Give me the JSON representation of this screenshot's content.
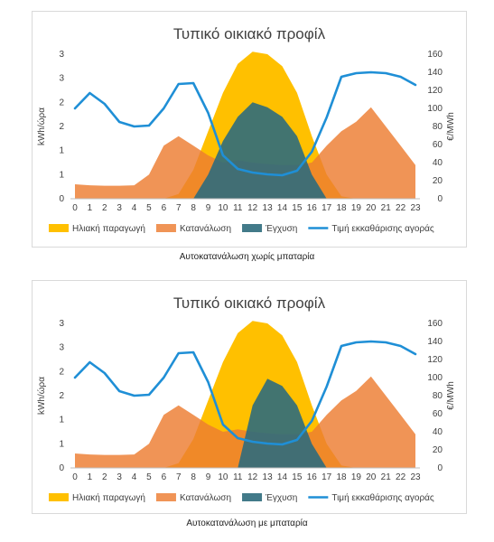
{
  "captions": [
    "Αυτοκατανάλωση χωρίς μπαταρία",
    "Αυτοκατανάλωση με μπαταρία"
  ],
  "colors": {
    "solar": "#ffc000",
    "consumption": "#ed7d31",
    "injection": "#2e6b7c",
    "price": "#1f8fd6"
  },
  "chart_data": [
    {
      "type": "area",
      "title": "Τυπικό οικιακό προφίλ",
      "ylabel": "kWh/ώρα",
      "y2label": "€/MWh",
      "x": [
        0,
        1,
        2,
        3,
        4,
        5,
        6,
        7,
        8,
        9,
        10,
        11,
        12,
        13,
        14,
        15,
        16,
        17,
        18,
        19,
        20,
        21,
        22,
        23
      ],
      "y_ticks": [
        "0",
        "1",
        "1",
        "2",
        "2",
        "3",
        "3"
      ],
      "y2_ticks": [
        "0",
        "20",
        "40",
        "60",
        "80",
        "100",
        "120",
        "140",
        "160"
      ],
      "ylim": [
        0,
        3
      ],
      "y2lim": [
        0,
        160
      ],
      "legend": "bottom",
      "series": [
        {
          "name": "Ηλιακή παραγωγή",
          "axis": "left",
          "kind": "area",
          "values": [
            0,
            0,
            0,
            0,
            0,
            0,
            0,
            0.1,
            0.6,
            1.4,
            2.2,
            2.8,
            3.05,
            3.0,
            2.75,
            2.2,
            1.3,
            0.5,
            0.05,
            0,
            0,
            0,
            0,
            0
          ]
        },
        {
          "name": "Κατανάλωση",
          "axis": "left",
          "kind": "area",
          "values": [
            0.3,
            0.28,
            0.27,
            0.27,
            0.28,
            0.5,
            1.1,
            1.3,
            1.1,
            0.9,
            0.75,
            0.8,
            0.75,
            0.72,
            0.7,
            0.7,
            0.75,
            1.1,
            1.4,
            1.6,
            1.9,
            1.5,
            1.1,
            0.7
          ]
        },
        {
          "name": "Έγχυση",
          "axis": "left",
          "kind": "area",
          "values": [
            0,
            0,
            0,
            0,
            0,
            0,
            0,
            0,
            0,
            0.5,
            1.2,
            1.7,
            2.0,
            1.9,
            1.7,
            1.3,
            0.5,
            0,
            0,
            0,
            0,
            0,
            0,
            0
          ]
        },
        {
          "name": "Τιμή εκκαθάρισης αγοράς",
          "axis": "right",
          "kind": "line",
          "values": [
            100,
            117,
            105,
            85,
            80,
            81,
            100,
            127,
            128,
            95,
            48,
            33,
            29,
            27,
            26,
            31,
            52,
            90,
            135,
            139,
            140,
            139,
            135,
            126
          ]
        }
      ]
    },
    {
      "type": "area",
      "title": "Τυπικό οικιακό προφίλ",
      "ylabel": "kWh/ώρα",
      "y2label": "€/MWh",
      "x": [
        0,
        1,
        2,
        3,
        4,
        5,
        6,
        7,
        8,
        9,
        10,
        11,
        12,
        13,
        14,
        15,
        16,
        17,
        18,
        19,
        20,
        21,
        22,
        23
      ],
      "y_ticks": [
        "0",
        "1",
        "1",
        "2",
        "2",
        "3",
        "3"
      ],
      "y2_ticks": [
        "0",
        "20",
        "40",
        "60",
        "80",
        "100",
        "120",
        "140",
        "160"
      ],
      "ylim": [
        0,
        3
      ],
      "y2lim": [
        0,
        160
      ],
      "legend": "bottom",
      "series": [
        {
          "name": "Ηλιακή παραγωγή",
          "axis": "left",
          "kind": "area",
          "values": [
            0,
            0,
            0,
            0,
            0,
            0,
            0,
            0.1,
            0.6,
            1.4,
            2.2,
            2.8,
            3.05,
            3.0,
            2.75,
            2.2,
            1.3,
            0.5,
            0.05,
            0,
            0,
            0,
            0,
            0
          ]
        },
        {
          "name": "Κατανάλωση",
          "axis": "left",
          "kind": "area",
          "values": [
            0.3,
            0.28,
            0.27,
            0.27,
            0.28,
            0.5,
            1.1,
            1.3,
            1.1,
            0.9,
            0.75,
            0.8,
            0.75,
            0.72,
            0.7,
            0.7,
            0.75,
            1.1,
            1.4,
            1.6,
            1.9,
            1.5,
            1.1,
            0.7
          ]
        },
        {
          "name": "Έγχυση",
          "axis": "left",
          "kind": "area",
          "values": [
            0,
            0,
            0,
            0,
            0,
            0,
            0,
            0,
            0,
            0,
            0,
            0,
            1.3,
            1.85,
            1.7,
            1.3,
            0.5,
            0,
            0,
            0,
            0,
            0,
            0,
            0
          ]
        },
        {
          "name": "Τιμή εκκαθάρισης αγοράς",
          "axis": "right",
          "kind": "line",
          "values": [
            100,
            117,
            105,
            85,
            80,
            81,
            100,
            127,
            128,
            95,
            48,
            33,
            29,
            27,
            26,
            31,
            52,
            90,
            135,
            139,
            140,
            139,
            135,
            126
          ]
        }
      ]
    }
  ]
}
